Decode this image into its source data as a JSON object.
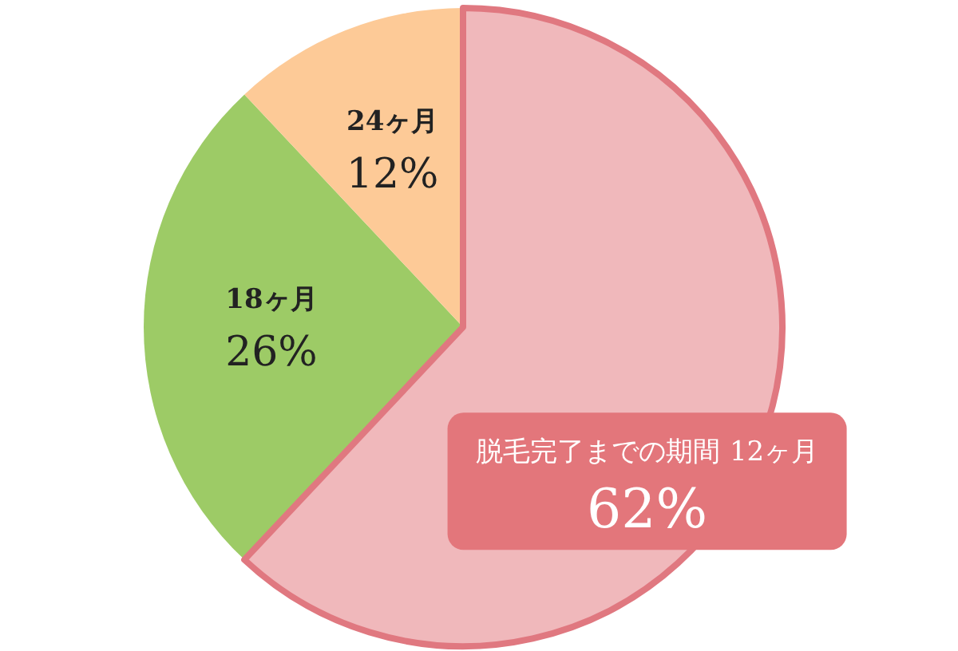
{
  "chart_data": {
    "type": "pie",
    "title": "脱毛完了までの期間",
    "categories": [
      "12ヶ月",
      "18ヶ月",
      "24ヶ月"
    ],
    "values": [
      62,
      26,
      12
    ],
    "value_labels": [
      "62%",
      "26%",
      "12%"
    ],
    "colors": [
      "#f0b8bb",
      "#9dcb66",
      "#fdca97"
    ]
  }
}
